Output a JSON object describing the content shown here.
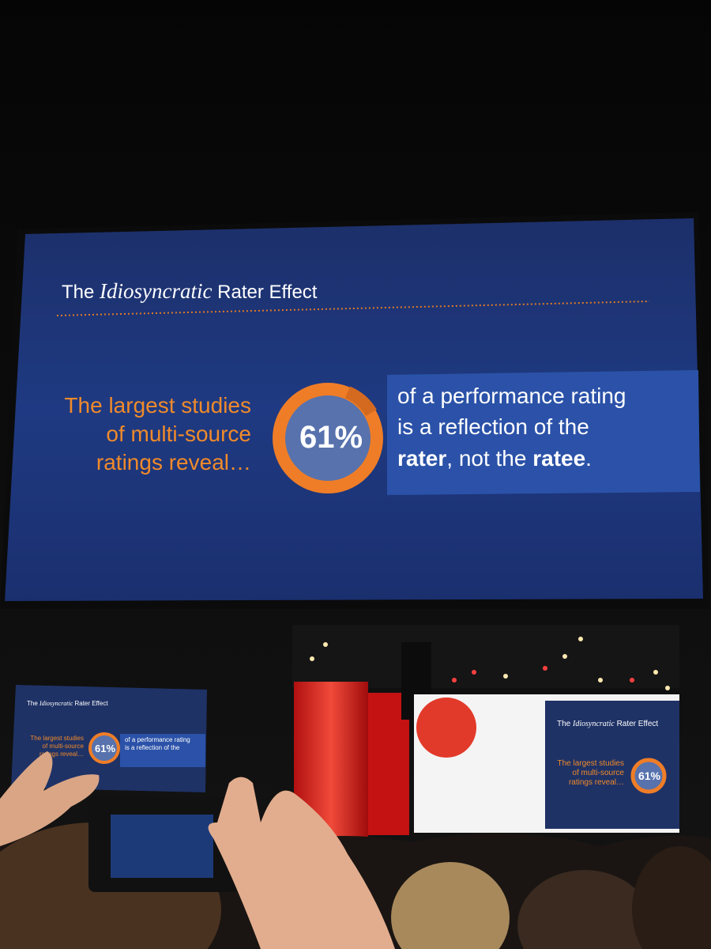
{
  "slide": {
    "title": {
      "before": "The",
      "italic": "Idiosyncratic",
      "after": "Rater Effect"
    },
    "left_lines": [
      "The largest studies",
      "of multi-source",
      "ratings reveal…"
    ],
    "percent": "61%",
    "right_lines": [
      "of a performance rating",
      "is a reflection of the"
    ],
    "last_line": {
      "bold_first": "rater",
      "middle": ", not the",
      "bold_second": "ratee",
      "end": "."
    }
  }
}
